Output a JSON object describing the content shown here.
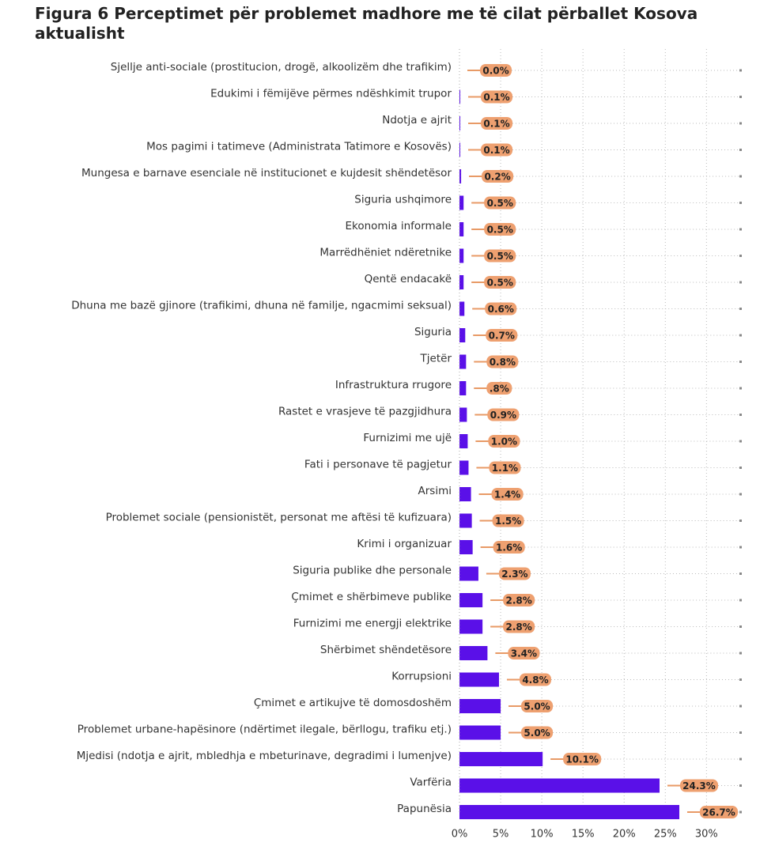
{
  "chart_data": {
    "type": "hbar",
    "title": "Figura 6 Perceptimet për problemet madhore me të cilat përballet Kosova aktualisht",
    "categories": [
      "Sjellje anti-sociale (prostitucion, drogë, alkoolizëm dhe trafikim)",
      "Edukimi i fëmijëve përmes ndëshkimit trupor",
      "Ndotja e ajrit",
      "Mos pagimi i tatimeve (Administrata Tatimore e Kosovës)",
      "Mungesa e barnave esenciale në institucionet e kujdesit shëndetësor",
      "Siguria ushqimore",
      "Ekonomia informale",
      "Marrëdhëniet ndëretnike",
      "Qentë endacakë",
      "Dhuna me bazë gjinore (trafikimi, dhuna në familje, ngacmimi seksual)",
      "Siguria",
      "Tjetër",
      "Infrastruktura rrugore",
      "Rastet e vrasjeve të pazgjidhura",
      "Furnizimi me ujë",
      "Fati i personave të pagjetur",
      "Arsimi",
      "Problemet sociale (pensionistët, personat me aftësi të kufizuara)",
      "Krimi i organizuar",
      "Siguria publike dhe personale",
      "Çmimet e shërbimeve publike",
      "Furnizimi me energji elektrike",
      "Shërbimet shëndetësore",
      "Korrupsioni",
      "Çmimet e artikujve të domosdoshëm",
      "Problemet urbane-hapësinore (ndërtimet ilegale, bërllogu, trafiku etj.)",
      "Mjedisi (ndotja e ajrit, mbledhja e mbeturinave, degradimi i lumenjve)",
      "Varfëria",
      "Papunësia"
    ],
    "values": [
      0.0,
      0.1,
      0.1,
      0.1,
      0.2,
      0.5,
      0.5,
      0.5,
      0.5,
      0.6,
      0.7,
      0.8,
      0.8,
      0.9,
      1.0,
      1.1,
      1.4,
      1.5,
      1.6,
      2.3,
      2.8,
      2.8,
      3.4,
      4.8,
      5.0,
      5.0,
      10.1,
      24.3,
      26.7
    ],
    "value_labels": [
      "0.0%",
      "0.1%",
      "0.1%",
      "0.1%",
      "0.2%",
      "0.5%",
      "0.5%",
      "0.5%",
      "0.5%",
      "0.6%",
      "0.7%",
      "0.8%",
      ".8%",
      "0.9%",
      "1.0%",
      "1.1%",
      "1.4%",
      "1.5%",
      "1.6%",
      "2.3%",
      "2.8%",
      "2.8%",
      "3.4%",
      "4.8%",
      "5.0%",
      "5.0%",
      "10.1%",
      "24.3%",
      "26.7%"
    ],
    "color": "#5a10e8",
    "xlim": [
      0,
      34
    ],
    "xticks": [
      {
        "value": 0,
        "label": "0%"
      },
      {
        "value": 5,
        "label": "5%"
      },
      {
        "value": 10,
        "label": "10%"
      },
      {
        "value": 15,
        "label": "15%"
      },
      {
        "value": 20,
        "label": "20%"
      },
      {
        "value": 25,
        "label": "25%"
      },
      {
        "value": 30,
        "label": "30%"
      }
    ],
    "grid": true
  }
}
